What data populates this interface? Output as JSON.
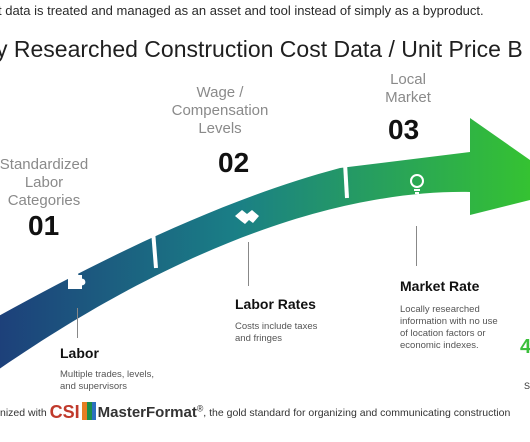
{
  "header": {
    "top_text": "t data is treated and managed as an asset and tool instead of simply as a byproduct.",
    "title": "y Researched Construction Cost Data / Unit Price B"
  },
  "steps": [
    {
      "number": "01",
      "category": "Standardized Labor Categories",
      "label": "Labor",
      "description": "Multiple trades, levels, and supervisors",
      "icon": "puzzle-icon"
    },
    {
      "number": "02",
      "category": "Wage / Compensation Levels",
      "label": "Labor Rates",
      "description": "Costs include taxes and fringes",
      "icon": "handshake-icon"
    },
    {
      "number": "03",
      "category": "Local Market",
      "label": "Market Rate",
      "description": "Locally researched information with no use of location factors or economic indexes.",
      "icon": "lightbulb-icon"
    }
  ],
  "footer": {
    "prefix": "nized with",
    "csi": "CSI",
    "masterformat": "MasterFormat",
    "reg": "®",
    "suffix": ", the gold standard for organizing and communicating construction"
  },
  "edge": {
    "green_glyph": "4",
    "s_glyph": "S"
  },
  "colors": {
    "arrow_start": "#1d3f7a",
    "arrow_mid": "#1a7f86",
    "arrow_end": "#35c232"
  }
}
